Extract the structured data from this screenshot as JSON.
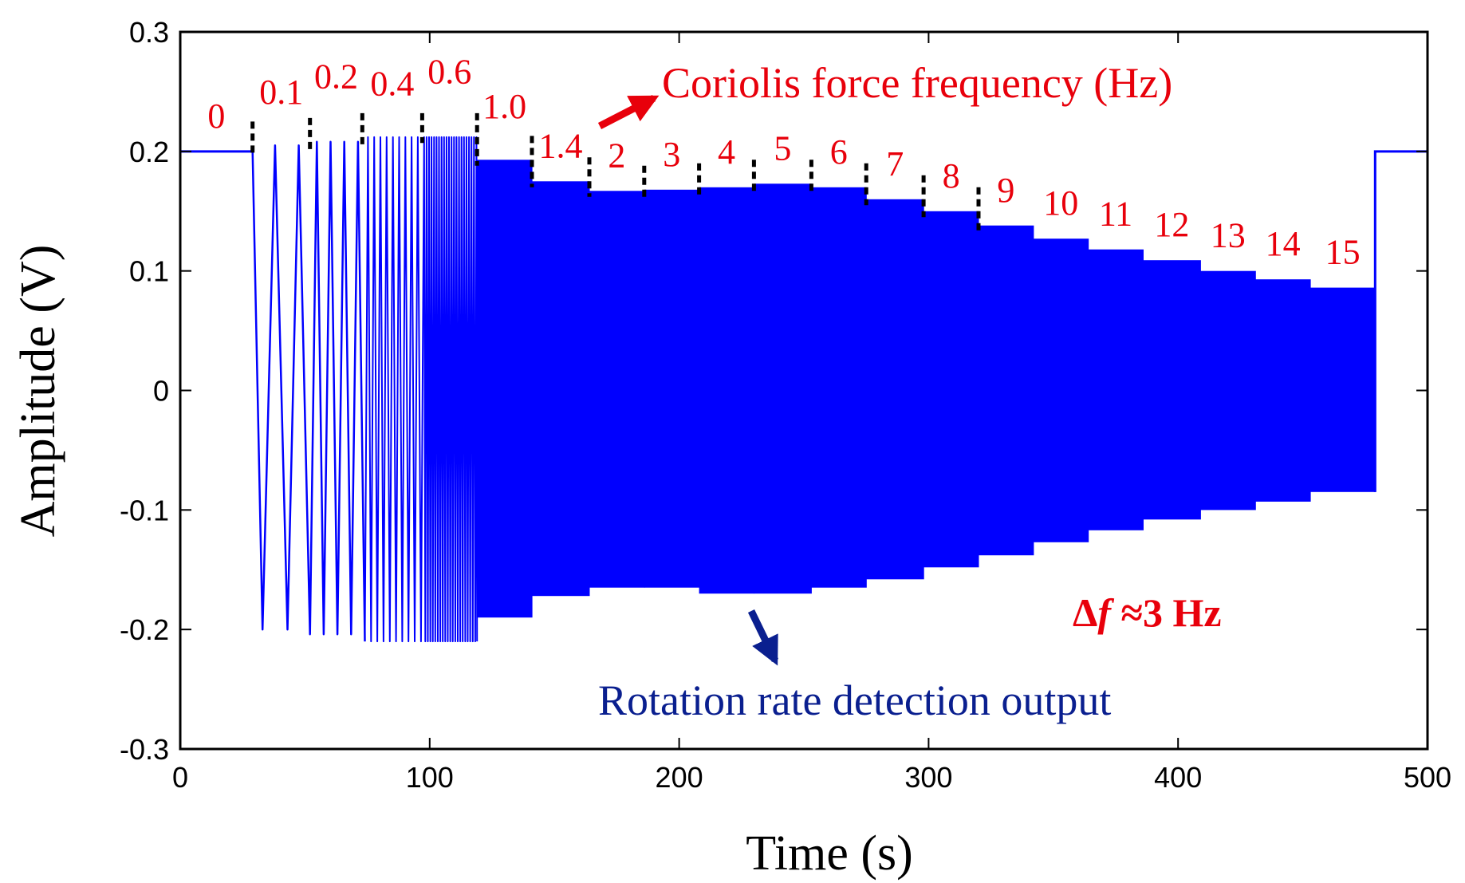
{
  "chart_data": {
    "type": "line",
    "xlabel": "Time (s)",
    "ylabel": "Amplitude (V)",
    "xlim": [
      0,
      500
    ],
    "ylim": [
      -0.3,
      0.3
    ],
    "x_ticks": [
      0,
      100,
      200,
      300,
      400,
      500
    ],
    "x_tick_labels": [
      "0",
      "100",
      "200",
      "300",
      "400",
      "500"
    ],
    "y_ticks": [
      0.3,
      0.2,
      0.1,
      0,
      -0.1,
      -0.2,
      -0.3
    ],
    "y_tick_labels": [
      "0.3",
      "0.2",
      "0.1",
      "0",
      "-0.1",
      "-0.2",
      "-0.3"
    ],
    "grid": false,
    "series_color": "#0000ff",
    "annotation_color": "#e8000b",
    "output_color": "#0a1f8f",
    "baseline_value": 0.2,
    "signal_start": 29,
    "signal_end": 479,
    "segments": [
      {
        "label": "0",
        "freq": 0,
        "t_start": 0,
        "t_end": 29,
        "upper": 0.2,
        "lower": 0.2
      },
      {
        "label": "0.1",
        "freq": 0.1,
        "t_start": 29,
        "t_end": 52,
        "upper": 0.205,
        "lower": -0.2
      },
      {
        "label": "0.2",
        "freq": 0.2,
        "t_start": 52,
        "t_end": 73,
        "upper": 0.208,
        "lower": -0.204
      },
      {
        "label": "0.4",
        "freq": 0.4,
        "t_start": 73,
        "t_end": 97,
        "upper": 0.212,
        "lower": -0.21
      },
      {
        "label": "0.6",
        "freq": 0.6,
        "t_start": 97,
        "t_end": 119,
        "upper": 0.212,
        "lower": -0.21
      },
      {
        "label": "1.0",
        "freq": 1.0,
        "t_start": 119,
        "t_end": 141,
        "upper": 0.193,
        "lower": -0.19
      },
      {
        "label": "1.4",
        "freq": 1.4,
        "t_start": 141,
        "t_end": 164,
        "upper": 0.175,
        "lower": -0.172
      },
      {
        "label": "2",
        "freq": 2,
        "t_start": 164,
        "t_end": 186,
        "upper": 0.167,
        "lower": -0.165
      },
      {
        "label": "3",
        "freq": 3,
        "t_start": 186,
        "t_end": 208,
        "upper": 0.168,
        "lower": -0.165
      },
      {
        "label": "4",
        "freq": 4,
        "t_start": 208,
        "t_end": 230,
        "upper": 0.17,
        "lower": -0.17
      },
      {
        "label": "5",
        "freq": 5,
        "t_start": 230,
        "t_end": 253,
        "upper": 0.173,
        "lower": -0.17
      },
      {
        "label": "6",
        "freq": 6,
        "t_start": 253,
        "t_end": 275,
        "upper": 0.17,
        "lower": -0.165
      },
      {
        "label": "7",
        "freq": 7,
        "t_start": 275,
        "t_end": 298,
        "upper": 0.16,
        "lower": -0.158
      },
      {
        "label": "8",
        "freq": 8,
        "t_start": 298,
        "t_end": 320,
        "upper": 0.15,
        "lower": -0.148
      },
      {
        "label": "9",
        "freq": 9,
        "t_start": 320,
        "t_end": 342,
        "upper": 0.138,
        "lower": -0.138
      },
      {
        "label": "10",
        "freq": 10,
        "t_start": 342,
        "t_end": 364,
        "upper": 0.127,
        "lower": -0.127
      },
      {
        "label": "11",
        "freq": 11,
        "t_start": 364,
        "t_end": 386,
        "upper": 0.118,
        "lower": -0.117
      },
      {
        "label": "12",
        "freq": 12,
        "t_start": 386,
        "t_end": 409,
        "upper": 0.109,
        "lower": -0.108
      },
      {
        "label": "13",
        "freq": 13,
        "t_start": 409,
        "t_end": 431,
        "upper": 0.1,
        "lower": -0.1
      },
      {
        "label": "14",
        "freq": 14,
        "t_start": 431,
        "t_end": 453,
        "upper": 0.093,
        "lower": -0.093
      },
      {
        "label": "15",
        "freq": 15,
        "t_start": 453,
        "t_end": 479,
        "upper": 0.086,
        "lower": -0.085
      },
      {
        "label": "",
        "freq": 0,
        "t_start": 479,
        "t_end": 500,
        "upper": 0.2,
        "lower": 0.2
      }
    ],
    "slow_oscillation_troughs": [
      33,
      43,
      52,
      57.5,
      63,
      68.5,
      74
    ],
    "boundary_markers": [
      29,
      52,
      73,
      97,
      119,
      141,
      164,
      186,
      208,
      230,
      253,
      275,
      298,
      320
    ],
    "annotations": {
      "coriolis_label": "Coriolis force frequency (Hz)",
      "output_label": "Rotation rate detection output",
      "delta_prefix": "Δ",
      "delta_var": "f",
      "delta_suffix": " ≈3 Hz"
    }
  }
}
